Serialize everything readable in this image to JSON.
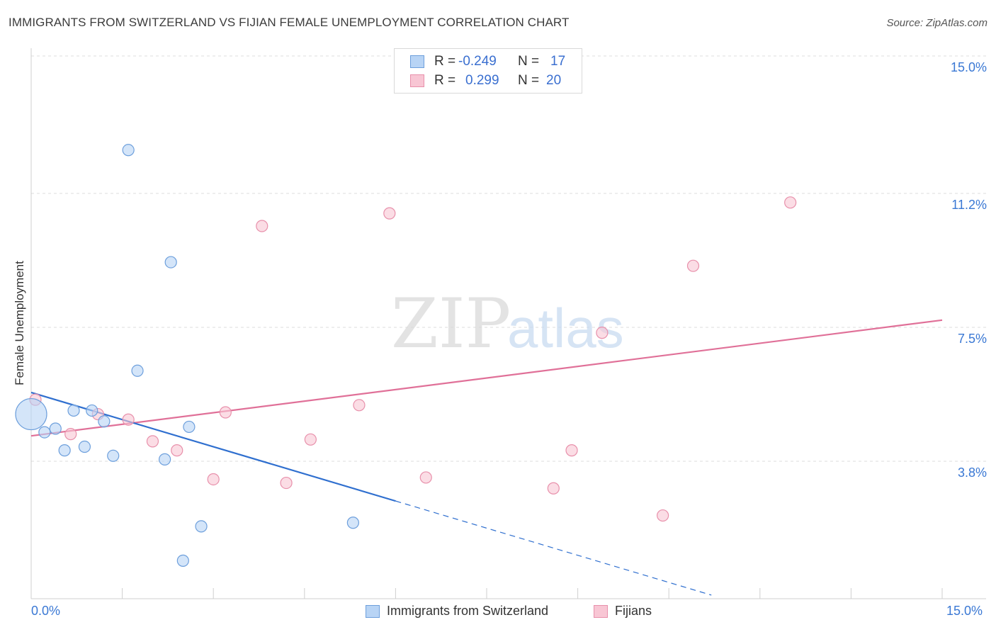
{
  "header": {
    "title": "IMMIGRANTS FROM SWITZERLAND VS FIJIAN FEMALE UNEMPLOYMENT CORRELATION CHART",
    "source": "Source: ZipAtlas.com"
  },
  "watermark": {
    "part1": "ZIP",
    "part2": "atlas"
  },
  "legend_stats": {
    "series1": {
      "r_label": "R =",
      "r_value": "-0.249",
      "n_label": "N =",
      "n_value": "17"
    },
    "series2": {
      "r_label": "R =",
      "r_value": "0.299",
      "n_label": "N =",
      "n_value": "20"
    }
  },
  "colors": {
    "blue_fill": "#b8d4f5",
    "blue_stroke": "#6d9fdc",
    "blue_line": "#2f6fcf",
    "pink_fill": "#f8c6d4",
    "pink_stroke": "#e890ab",
    "pink_line": "#e07098",
    "tick_label": "#3a78d4"
  },
  "chart_data": {
    "type": "scatter",
    "title": "IMMIGRANTS FROM SWITZERLAND VS FIJIAN FEMALE UNEMPLOYMENT CORRELATION CHART",
    "xlabel": "",
    "ylabel": "Female Unemployment",
    "xlim": [
      0,
      15
    ],
    "ylim": [
      0,
      15
    ],
    "x_tick_labels": [
      "0.0%",
      "15.0%"
    ],
    "y_ticks": [
      3.8,
      7.5,
      11.2,
      15.0
    ],
    "y_tick_labels": [
      "3.8%",
      "7.5%",
      "11.2%",
      "15.0%"
    ],
    "grid": true,
    "series": [
      {
        "name": "Immigrants from Switzerland",
        "color": "blue",
        "points": [
          {
            "x": 0.0,
            "y": 5.1,
            "size": "large"
          },
          {
            "x": 0.22,
            "y": 4.6
          },
          {
            "x": 0.4,
            "y": 4.7
          },
          {
            "x": 0.55,
            "y": 4.1
          },
          {
            "x": 0.7,
            "y": 5.2
          },
          {
            "x": 0.88,
            "y": 4.2
          },
          {
            "x": 1.0,
            "y": 5.2
          },
          {
            "x": 1.2,
            "y": 4.9
          },
          {
            "x": 1.35,
            "y": 3.95
          },
          {
            "x": 1.6,
            "y": 12.4
          },
          {
            "x": 1.75,
            "y": 6.3
          },
          {
            "x": 2.2,
            "y": 3.85
          },
          {
            "x": 2.3,
            "y": 9.3
          },
          {
            "x": 2.6,
            "y": 4.75
          },
          {
            "x": 2.5,
            "y": 1.05
          },
          {
            "x": 2.8,
            "y": 2.0
          },
          {
            "x": 5.3,
            "y": 2.1
          }
        ],
        "trend": {
          "x0": 0,
          "y0": 5.7,
          "x1": 6.0,
          "y1": 2.7,
          "dashed_to_x": 11.2,
          "dashed_to_y": 0.1
        }
      },
      {
        "name": "Fijians",
        "color": "pink",
        "points": [
          {
            "x": 0.07,
            "y": 5.5
          },
          {
            "x": 0.65,
            "y": 4.55
          },
          {
            "x": 1.1,
            "y": 5.1
          },
          {
            "x": 1.6,
            "y": 4.95
          },
          {
            "x": 2.0,
            "y": 4.35
          },
          {
            "x": 2.4,
            "y": 4.1
          },
          {
            "x": 3.0,
            "y": 3.3
          },
          {
            "x": 3.2,
            "y": 5.15
          },
          {
            "x": 3.8,
            "y": 10.3
          },
          {
            "x": 4.2,
            "y": 3.2
          },
          {
            "x": 4.6,
            "y": 4.4
          },
          {
            "x": 5.4,
            "y": 5.35
          },
          {
            "x": 5.9,
            "y": 10.65
          },
          {
            "x": 6.5,
            "y": 3.35
          },
          {
            "x": 8.6,
            "y": 3.05
          },
          {
            "x": 8.9,
            "y": 4.1
          },
          {
            "x": 9.4,
            "y": 7.35
          },
          {
            "x": 10.4,
            "y": 2.3
          },
          {
            "x": 10.9,
            "y": 9.2
          },
          {
            "x": 12.5,
            "y": 10.95
          }
        ],
        "trend": {
          "x0": 0,
          "y0": 4.5,
          "x1": 15,
          "y1": 7.7
        }
      }
    ],
    "legend": [
      "Immigrants from Switzerland",
      "Fijians"
    ]
  }
}
